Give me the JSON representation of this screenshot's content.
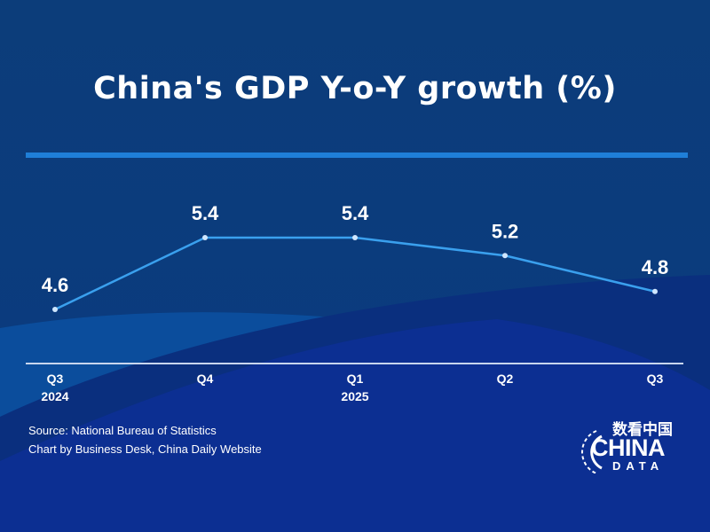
{
  "chart_data": {
    "type": "line",
    "title": "China's GDP Y-o-Y growth (%)",
    "categories": [
      [
        "Q3",
        "2024"
      ],
      [
        "Q4",
        ""
      ],
      [
        "Q1",
        "2025"
      ],
      [
        "Q2",
        ""
      ],
      [
        "Q3",
        ""
      ]
    ],
    "values": [
      4.6,
      5.4,
      5.4,
      5.2,
      4.8
    ],
    "data_labels": [
      "4.6",
      "5.4",
      "5.4",
      "5.2",
      "4.8"
    ],
    "grid": false,
    "line_color": "#3aa0ee"
  },
  "footer": {
    "source": "Source: National Bureau of Statistics",
    "credit": "Chart by Business Desk, China Daily Website"
  },
  "logo": {
    "cn": "数看中国",
    "en": "CHINA",
    "sub": "DATA"
  }
}
